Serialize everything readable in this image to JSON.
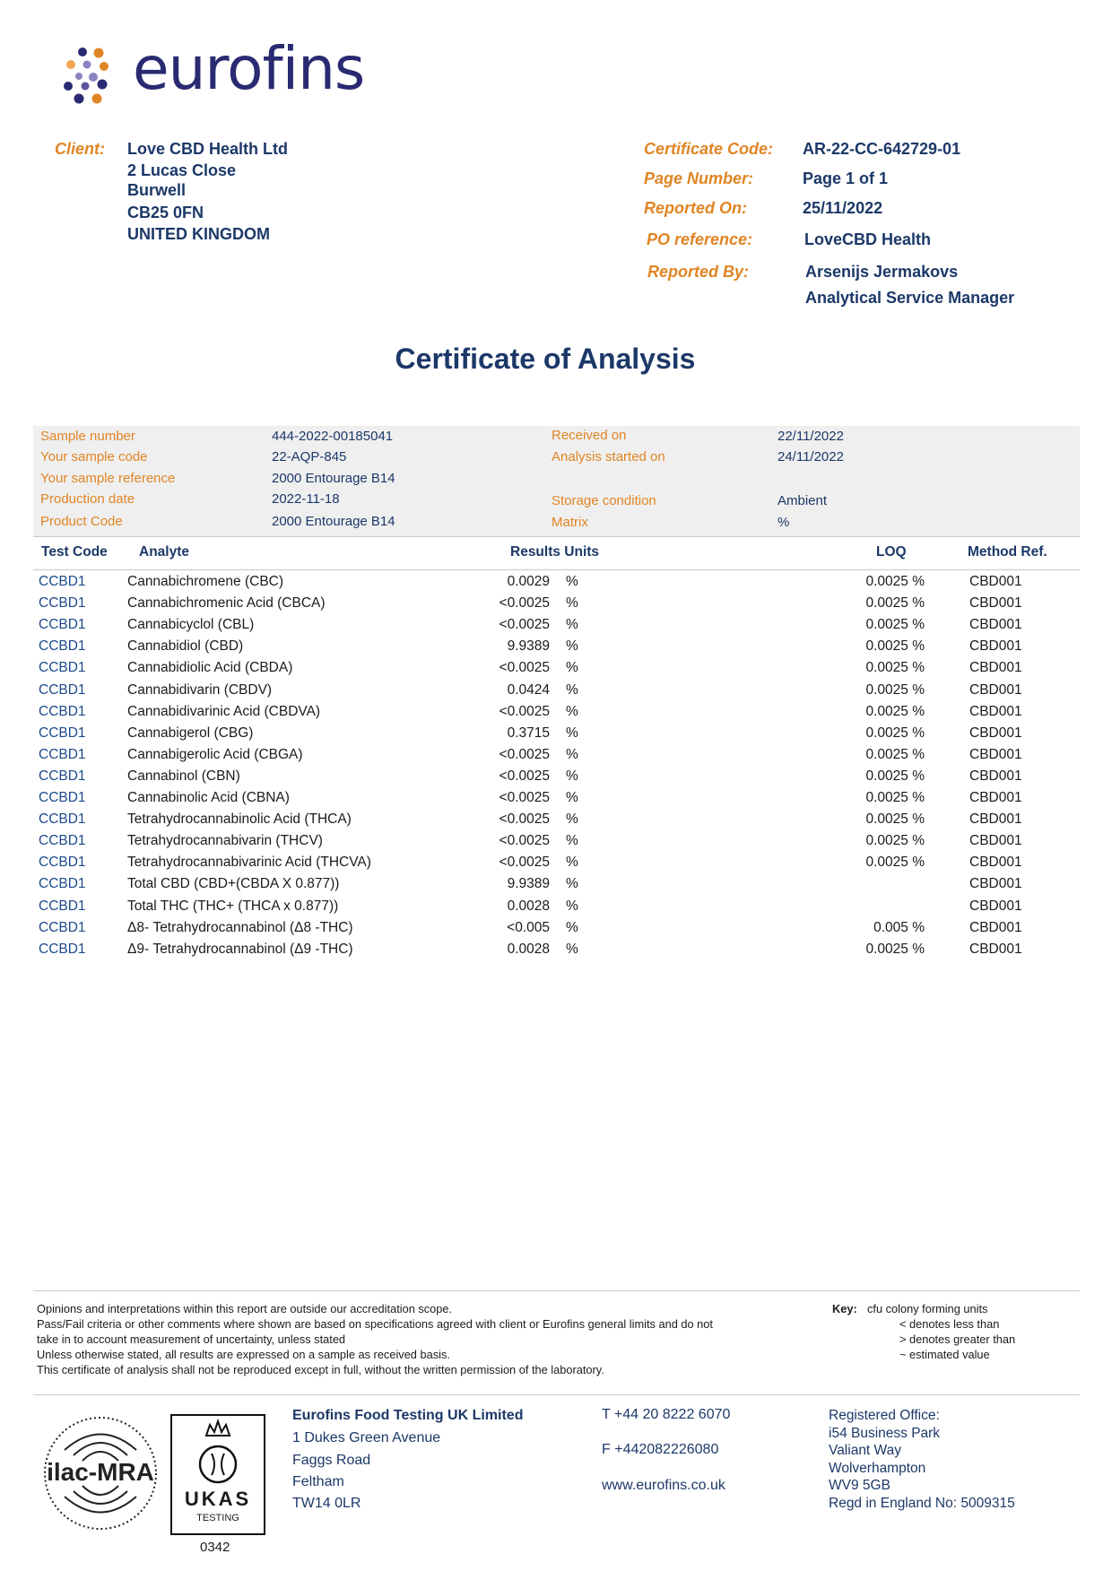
{
  "brand": {
    "name": "eurofins",
    "colors": {
      "navy": "#2a2a72",
      "orange": "#e08524",
      "lavender": "#8a84c4"
    }
  },
  "client": {
    "label": "Client:",
    "lines": [
      "Love CBD Health Ltd",
      "2 Lucas Close",
      "Burwell",
      "CB25 0FN",
      "UNITED KINGDOM"
    ]
  },
  "meta": [
    {
      "label": "Certificate Code:",
      "value": "AR-22-CC-642729-01"
    },
    {
      "label": "Page Number:",
      "value": "Page 1 of 1"
    },
    {
      "label": "Reported On:",
      "value": "25/11/2022"
    },
    {
      "label": "PO reference:",
      "value": "LoveCBD Health"
    },
    {
      "label": "Reported By:",
      "value": "Arsenijs Jermakovs",
      "value2": "Analytical Service Manager"
    }
  ],
  "title": "Certificate of Analysis",
  "sample_info": {
    "left": [
      {
        "label": "Sample number",
        "value": "444-2022-00185041"
      },
      {
        "label": "Your sample code",
        "value": "22-AQP-845"
      },
      {
        "label": "Your sample reference",
        "value": "2000 Entourage B14"
      },
      {
        "label": "Production date",
        "value": "2022-11-18"
      },
      {
        "label": "Product Code",
        "value": "2000 Entourage B14"
      }
    ],
    "right": [
      {
        "label": "Received on",
        "value": "22/11/2022"
      },
      {
        "label": "Analysis started on",
        "value": "24/11/2022"
      },
      {
        "label": "Storage condition",
        "value": "Ambient"
      },
      {
        "label": "Matrix",
        "value": "%"
      }
    ]
  },
  "table": {
    "headers": {
      "test_code": "Test Code",
      "analyte": "Analyte",
      "results_units": "Results Units",
      "loq": "LOQ",
      "method": "Method Ref."
    },
    "rows": [
      {
        "code": "CCBD1",
        "analyte": "Cannabichromene (CBC)",
        "result": "0.0029",
        "unit": "%",
        "loq": "0.0025 %",
        "method": "CBD001"
      },
      {
        "code": "CCBD1",
        "analyte": "Cannabichromenic Acid (CBCA)",
        "result": "<0.0025",
        "unit": "%",
        "loq": "0.0025 %",
        "method": "CBD001"
      },
      {
        "code": "CCBD1",
        "analyte": "Cannabicyclol (CBL)",
        "result": "<0.0025",
        "unit": "%",
        "loq": "0.0025 %",
        "method": "CBD001"
      },
      {
        "code": "CCBD1",
        "analyte": "Cannabidiol (CBD)",
        "result": "9.9389",
        "unit": "%",
        "loq": "0.0025 %",
        "method": "CBD001"
      },
      {
        "code": "CCBD1",
        "analyte": "Cannabidiolic Acid (CBDA)",
        "result": "<0.0025",
        "unit": "%",
        "loq": "0.0025 %",
        "method": "CBD001"
      },
      {
        "code": "CCBD1",
        "analyte": "Cannabidivarin (CBDV)",
        "result": "0.0424",
        "unit": "%",
        "loq": "0.0025 %",
        "method": "CBD001"
      },
      {
        "code": "CCBD1",
        "analyte": "Cannabidivarinic Acid (CBDVA)",
        "result": "<0.0025",
        "unit": "%",
        "loq": "0.0025 %",
        "method": "CBD001"
      },
      {
        "code": "CCBD1",
        "analyte": "Cannabigerol (CBG)",
        "result": "0.3715",
        "unit": "%",
        "loq": "0.0025 %",
        "method": "CBD001"
      },
      {
        "code": "CCBD1",
        "analyte": "Cannabigerolic Acid (CBGA)",
        "result": "<0.0025",
        "unit": "%",
        "loq": "0.0025 %",
        "method": "CBD001"
      },
      {
        "code": "CCBD1",
        "analyte": "Cannabinol (CBN)",
        "result": "<0.0025",
        "unit": "%",
        "loq": "0.0025 %",
        "method": "CBD001"
      },
      {
        "code": "CCBD1",
        "analyte": "Cannabinolic Acid (CBNA)",
        "result": "<0.0025",
        "unit": "%",
        "loq": "0.0025 %",
        "method": "CBD001"
      },
      {
        "code": "CCBD1",
        "analyte": "Tetrahydrocannabinolic Acid (THCA)",
        "result": "<0.0025",
        "unit": "%",
        "loq": "0.0025 %",
        "method": "CBD001"
      },
      {
        "code": "CCBD1",
        "analyte": "Tetrahydrocannabivarin (THCV)",
        "result": "<0.0025",
        "unit": "%",
        "loq": "0.0025 %",
        "method": "CBD001"
      },
      {
        "code": "CCBD1",
        "analyte": "Tetrahydrocannabivarinic Acid (THCVA)",
        "result": "<0.0025",
        "unit": "%",
        "loq": "0.0025 %",
        "method": "CBD001"
      },
      {
        "code": "CCBD1",
        "analyte": "Total CBD (CBD+(CBDA X 0.877))",
        "result": "9.9389",
        "unit": "%",
        "loq": "",
        "method": "CBD001"
      },
      {
        "code": "CCBD1",
        "analyte": "Total THC (THC+ (THCA x 0.877))",
        "result": "0.0028",
        "unit": "%",
        "loq": "",
        "method": "CBD001"
      },
      {
        "code": "CCBD1",
        "analyte": "Δ8- Tetrahydrocannabinol (Δ8 -THC)",
        "result": "<0.005",
        "unit": "%",
        "loq": "0.005 %",
        "method": "CBD001"
      },
      {
        "code": "CCBD1",
        "analyte": "Δ9- Tetrahydrocannabinol (Δ9 -THC)",
        "result": "0.0028",
        "unit": "%",
        "loq": "0.0025 %",
        "method": "CBD001"
      }
    ]
  },
  "notes": [
    "Opinions and interpretations within this report are outside our accreditation scope.",
    "Pass/Fail criteria or other comments where shown are based on specifications agreed with client or Eurofins general limits and do not",
    "take in to account measurement of uncertainty, unless stated",
    "Unless otherwise stated, all results are expressed on a sample as received basis.",
    "This certificate of analysis shall not be reproduced except in full, without the written permission of the laboratory."
  ],
  "key": {
    "label": "Key:",
    "items": [
      "cfu colony forming units",
      "< denotes less than",
      "> denotes greater than",
      "~ estimated value"
    ]
  },
  "footer": {
    "accreditation": {
      "ilac": "ilac-MRA",
      "ukas": "UKAS",
      "ukas_sub": "TESTING",
      "number": "0342"
    },
    "company": [
      "Eurofins Food Testing UK Limited",
      "1 Dukes Green Avenue",
      "Faggs Road",
      "Feltham",
      "TW14 0LR"
    ],
    "contact": {
      "phone": "T  +44 20 8222 6070",
      "fax": "F  +442082226080",
      "web": "www.eurofins.co.uk"
    },
    "registered": [
      "Registered Office:",
      "i54 Business Park",
      "Valiant Way",
      "Wolverhampton",
      "WV9 5GB",
      "Regd in England No: 5009315"
    ]
  }
}
